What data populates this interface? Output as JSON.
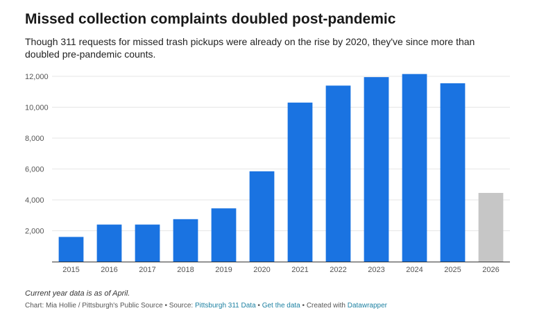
{
  "header": {
    "title": "Missed collection complaints doubled post-pandemic",
    "subtitle": "Though 311 requests for missed trash pickups were already on the rise by 2020, they've since more than doubled pre-pandemic counts."
  },
  "chart_data": {
    "type": "bar",
    "categories": [
      "2015",
      "2016",
      "2017",
      "2018",
      "2019",
      "2020",
      "2021",
      "2022",
      "2023",
      "2024",
      "2025",
      "2026"
    ],
    "values": [
      1600,
      2400,
      2400,
      2750,
      3450,
      5850,
      10300,
      11400,
      11950,
      12150,
      11550,
      4450
    ],
    "ylim": [
      0,
      12000
    ],
    "y_ticks": [
      2000,
      4000,
      6000,
      8000,
      10000,
      12000
    ],
    "y_tick_labels": [
      "2,000",
      "4,000",
      "6,000",
      "8,000",
      "10,000",
      "12,000"
    ],
    "grid": true,
    "colors": {
      "complete_year": "#1a73e1",
      "partial_year": "#c6c6c6",
      "grid": "#e6e6e6",
      "axis": "#333333"
    },
    "partial_category": "2026"
  },
  "notes": {
    "text": "Current year data is as of April."
  },
  "footer": {
    "chart_by": "Chart: Mia Hollie / Pittsburgh's Public Source",
    "sep1": " • ",
    "source_label": "Source: ",
    "source_link": "Pittsburgh 311 Data",
    "sep2": " • ",
    "data_link": "Get the data",
    "sep3": " • ",
    "created_with": "Created with ",
    "tool_link": "Datawrapper"
  }
}
